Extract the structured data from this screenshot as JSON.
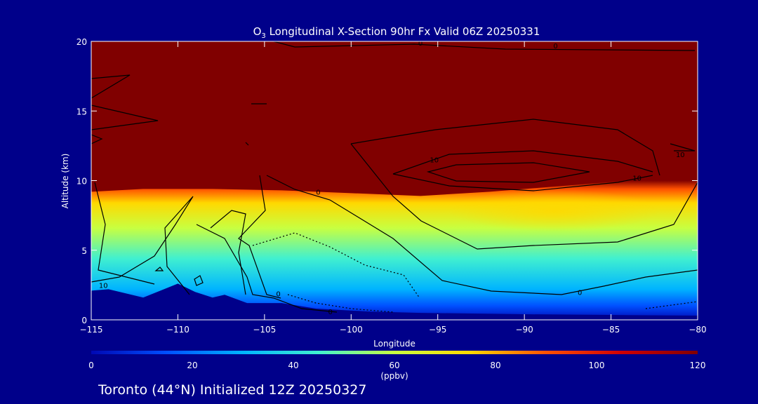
{
  "chart_data": {
    "type": "heatmap",
    "title_prefix": "O",
    "title_sub": "3",
    "title_rest": " Longitudinal X-Section 90hr  Fx Valid 06Z 20250331",
    "xlabel": "Longitude",
    "ylabel": "Altitude (km)",
    "xlim": [
      -115,
      -80
    ],
    "ylim": [
      0,
      20
    ],
    "x_ticks": [
      -115,
      -110,
      -105,
      -100,
      -95,
      -90,
      -85,
      -80
    ],
    "x_tick_labels": [
      "−115",
      "−110",
      "−105",
      "−100",
      "−95",
      "−90",
      "−85",
      "−80"
    ],
    "y_ticks": [
      0,
      5,
      10,
      15,
      20
    ],
    "y_tick_labels": [
      "0",
      "5",
      "10",
      "15",
      "20"
    ],
    "colorbar": {
      "min": 0,
      "max": 120,
      "ticks": [
        0,
        20,
        40,
        60,
        80,
        100,
        120
      ],
      "tick_labels": [
        "0",
        "20",
        "40",
        "60",
        "80",
        "100",
        "120"
      ],
      "units": "(ppbv)",
      "colors": [
        "#0008b4",
        "#0050ff",
        "#00b4ff",
        "#40f0d0",
        "#c8ff40",
        "#ffd800",
        "#ff5000",
        "#d00000",
        "#800000"
      ]
    },
    "terrain_profile": {
      "x": [
        -115,
        -114,
        -112,
        -110,
        -109,
        -108,
        -107.3,
        -106,
        -104,
        -102,
        -99,
        -96,
        -90,
        -85,
        -80
      ],
      "y": [
        2.1,
        2.2,
        1.6,
        2.6,
        2.0,
        1.6,
        1.8,
        1.2,
        1.2,
        0.8,
        0.6,
        0.5,
        0.4,
        0.35,
        0.3
      ]
    },
    "tropopause_profile": {
      "x": [
        -115,
        -112,
        -108,
        -104,
        -100,
        -96,
        -92,
        -88,
        -84,
        -80
      ],
      "y": [
        9.2,
        9.4,
        9.4,
        9.3,
        9.1,
        8.9,
        9.2,
        9.6,
        10.0,
        10.2
      ]
    },
    "contour_labels": [
      {
        "x": -114.3,
        "y": 2.5,
        "text": "10"
      },
      {
        "x": -104.2,
        "y": 1.9,
        "text": "0"
      },
      {
        "x": -101.2,
        "y": 0.6,
        "text": "0"
      },
      {
        "x": -101.9,
        "y": 9.2,
        "text": "0"
      },
      {
        "x": -95.2,
        "y": 11.5,
        "text": "10"
      },
      {
        "x": -86.8,
        "y": 2.0,
        "text": "0"
      },
      {
        "x": -83.5,
        "y": 10.2,
        "text": "10"
      },
      {
        "x": -81.0,
        "y": 11.9,
        "text": "10"
      },
      {
        "x": -96.0,
        "y": 19.9,
        "text": "0"
      },
      {
        "x": -88.2,
        "y": 19.7,
        "text": "0"
      }
    ],
    "footer": "Toronto (44°N) Initialized 12Z 20250327"
  }
}
